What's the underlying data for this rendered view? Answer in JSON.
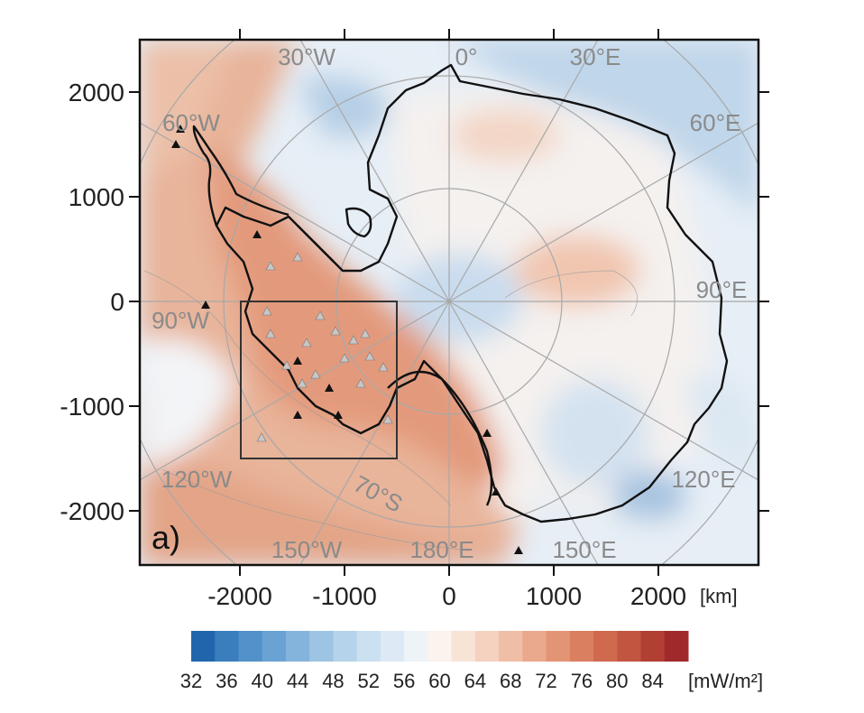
{
  "panel_label": "a)",
  "map": {
    "x_unit": "[km]",
    "x_ticks": [
      "-2000",
      "-1000",
      "0",
      "1000",
      "2000"
    ],
    "y_ticks": [
      "2000",
      "1000",
      "0",
      "-1000",
      "-2000"
    ],
    "longitude_labels": [
      "30°W",
      "0°",
      "30°E",
      "60°W",
      "60°E",
      "90°W",
      "90°E",
      "120°W",
      "120°E",
      "150°W",
      "180°E",
      "150°E"
    ],
    "latitude_label": "70°S"
  },
  "colorbar": {
    "unit": "[mW/m²]",
    "ticks": [
      "32",
      "36",
      "40",
      "44",
      "48",
      "52",
      "56",
      "60",
      "64",
      "68",
      "72",
      "76",
      "80",
      "84"
    ],
    "colors": [
      "#2166ac",
      "#3a7ebe",
      "#5291c9",
      "#6aa3d3",
      "#84b4dc",
      "#9dc4e3",
      "#b5d3ea",
      "#cbe0f0",
      "#dde9f4",
      "#eef3f8",
      "#fbf3ee",
      "#f8e3d7",
      "#f5d1bf",
      "#f0bea6",
      "#eaa98c",
      "#e39475",
      "#da7f60",
      "#cf6a4e",
      "#c2553f",
      "#b23f33",
      "#a02a2b"
    ]
  }
}
